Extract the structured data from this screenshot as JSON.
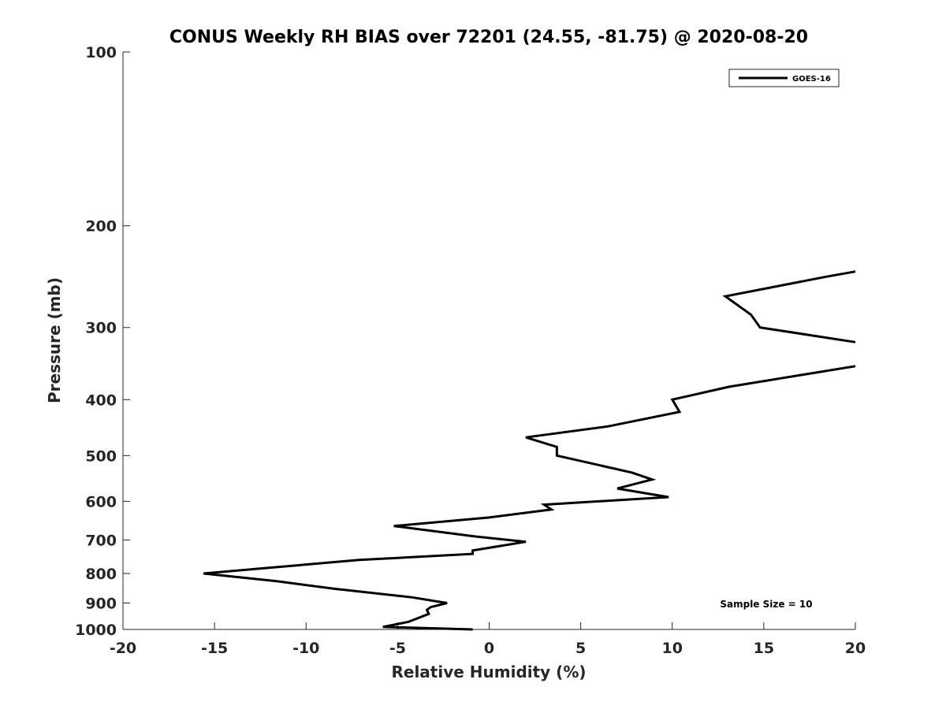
{
  "chart_data": {
    "type": "line",
    "title": "CONUS Weekly RH BIAS over 72201 (24.55, -81.75) @ 2020-08-20",
    "xlabel": "Relative Humidity (%)",
    "ylabel": "Pressure (mb)",
    "xlim": [
      -20,
      20
    ],
    "ylim": [
      100,
      1000
    ],
    "yscale": "log",
    "yreversed": true,
    "grid": false,
    "legend_placement": "top-right",
    "x_ticks": [
      -20,
      -15,
      -10,
      -5,
      0,
      5,
      10,
      15,
      20
    ],
    "y_ticks": [
      100,
      200,
      300,
      400,
      500,
      600,
      700,
      800,
      900,
      1000
    ],
    "annotation": "Sample Size = 10",
    "series": [
      {
        "name": "GOES-16",
        "color": "#000000",
        "x": [
          -0.9,
          -5.8,
          -4.4,
          -3.3,
          -3.4,
          -3.2,
          -2.3,
          -4.2,
          -8.5,
          -11.6,
          -15.6,
          -11.6,
          -7.1,
          -0.9,
          -0.9,
          2.0,
          -0.8,
          -5.2,
          0.0,
          3.4,
          3.0,
          9.8,
          7.0,
          8.9,
          7.8,
          3.7,
          3.7,
          2.0,
          6.5,
          10.4,
          10.0,
          13.1,
          20.0,
          null,
          20.0,
          14.8,
          14.3,
          12.9,
          18.4,
          20.0
        ],
        "y": [
          1000,
          990,
          970,
          940,
          925,
          915,
          900,
          880,
          850,
          825,
          800,
          780,
          758,
          740,
          730,
          705,
          690,
          662,
          640,
          620,
          608,
          590,
          570,
          550,
          535,
          500,
          483,
          465,
          445,
          420,
          400,
          380,
          350,
          null,
          318,
          300,
          285,
          265,
          245,
          240
        ]
      }
    ]
  }
}
